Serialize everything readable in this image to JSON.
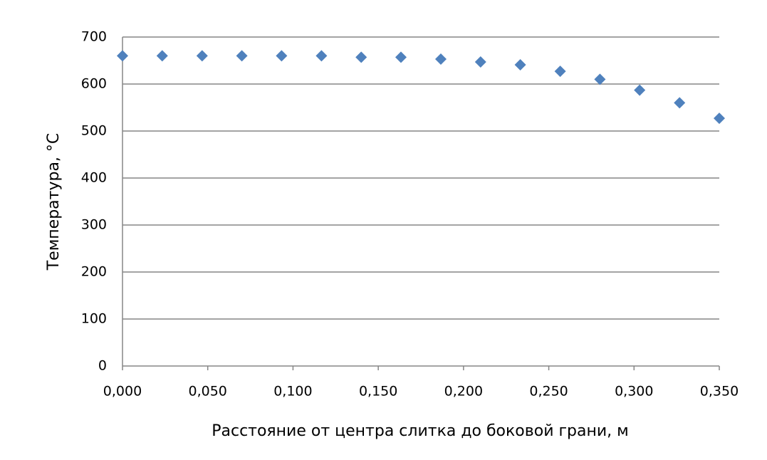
{
  "chart_data": {
    "type": "scatter",
    "x_label": "Расстояние от центра слитка до боковой грани, м",
    "y_label": "Температура, °С",
    "series": [
      {
        "color": "#4f81bd",
        "x": [
          0,
          0.0233,
          0.0467,
          0.07,
          0.0933,
          0.1167,
          0.14,
          0.1633,
          0.1867,
          0.21,
          0.2333,
          0.2567,
          0.28,
          0.3033,
          0.3267,
          0.35
        ],
        "values": [
          660,
          660,
          660,
          660,
          660,
          660,
          657,
          657,
          653,
          647,
          641,
          627,
          610,
          587,
          560,
          527
        ]
      }
    ],
    "xlim": [
      0,
      0.35
    ],
    "xticks": [
      {
        "value": 0,
        "label": "0,000"
      },
      {
        "value": 0.05,
        "label": "0,050"
      },
      {
        "value": 0.1,
        "label": "0,100"
      },
      {
        "value": 0.15,
        "label": "0,150"
      },
      {
        "value": 0.2,
        "label": "0,200"
      },
      {
        "value": 0.25,
        "label": "0,250"
      },
      {
        "value": 0.3,
        "label": "0,300"
      },
      {
        "value": 0.35,
        "label": "0,350"
      }
    ],
    "ylim": [
      0,
      700
    ],
    "yticks": [
      0,
      100,
      200,
      300,
      400,
      500,
      600,
      700
    ],
    "grid": true
  }
}
